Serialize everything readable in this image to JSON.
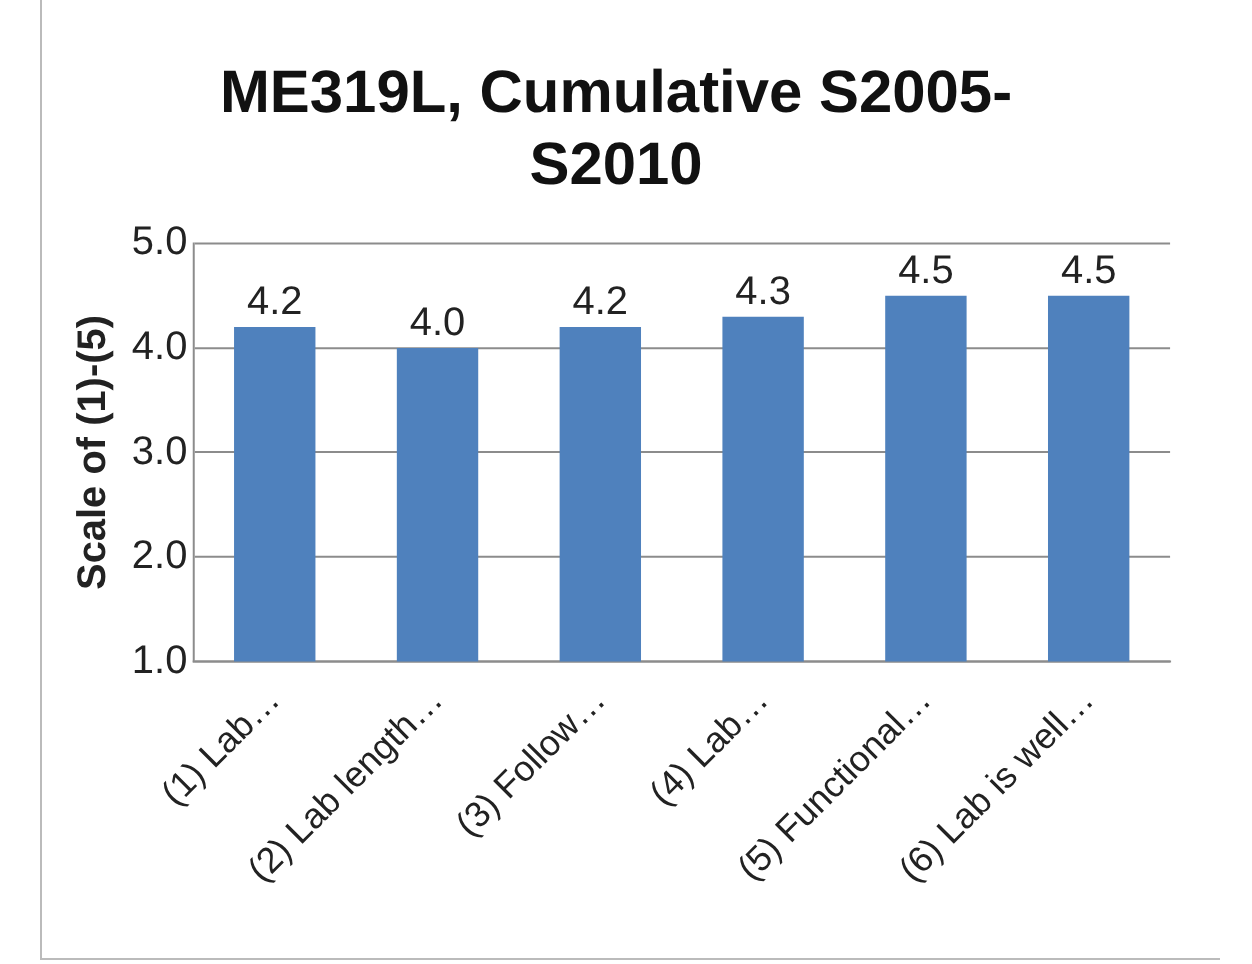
{
  "chart_data": {
    "type": "bar",
    "title": "ME319L, Cumulative S2005-S2010",
    "ylabel": "Scale of (1)-(5)",
    "categories": [
      "(1) Lab…",
      "(2) Lab length…",
      "(3) Follow…",
      "(4) Lab…",
      "(5) Functional…",
      "(6) Lab is well…"
    ],
    "values": [
      4.2,
      4.0,
      4.2,
      4.3,
      4.5,
      4.5
    ],
    "value_labels": [
      "4.2",
      "4.0",
      "4.2",
      "4.3",
      "4.5",
      "4.5"
    ],
    "color": "#4f81bd",
    "ylim": [
      1,
      5
    ],
    "yticks": [
      {
        "value": 1,
        "label": "1.0"
      },
      {
        "value": 2,
        "label": "2.0"
      },
      {
        "value": 3,
        "label": "3.0"
      },
      {
        "value": 4,
        "label": "4.0"
      },
      {
        "value": 5,
        "label": "5.0"
      }
    ],
    "grid": "y",
    "legend": false
  }
}
